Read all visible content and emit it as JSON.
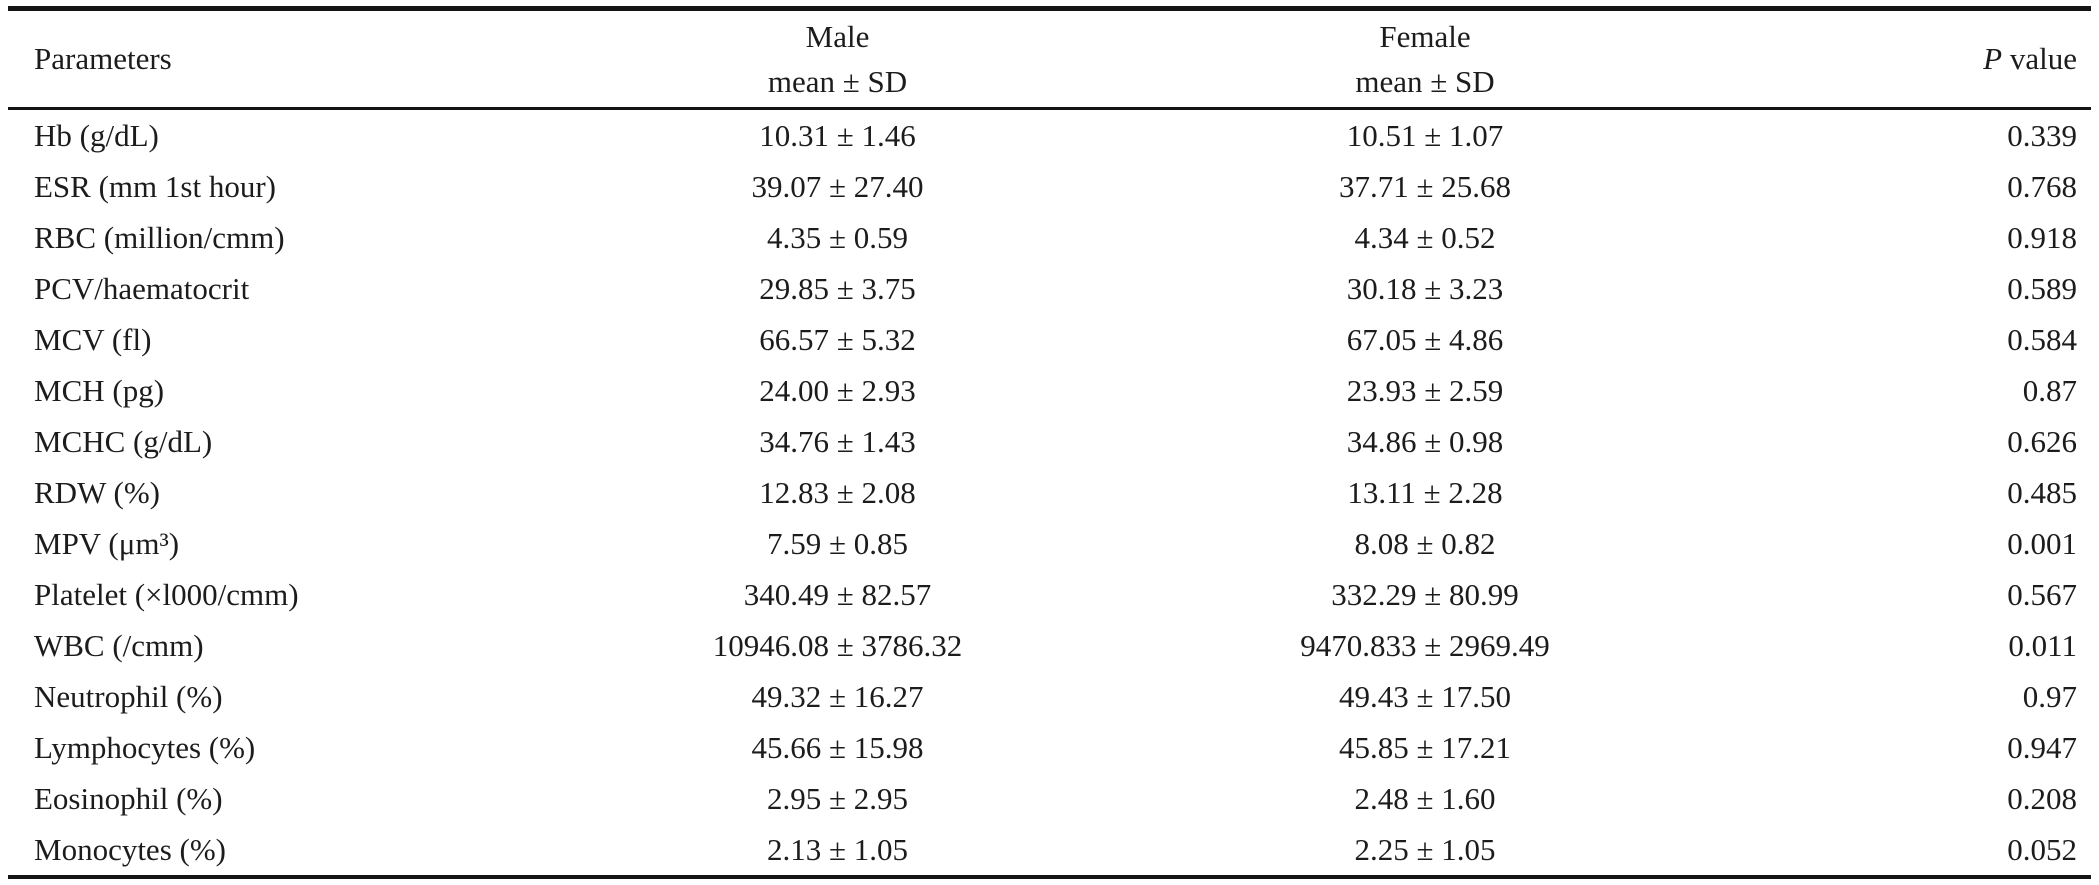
{
  "colors": {
    "background": "#ffffff",
    "text": "#1c1c1c",
    "rule": "#141414"
  },
  "table": {
    "header": {
      "parameters_label": "Parameters",
      "male_label": "Male",
      "male_sub": "mean ± SD",
      "female_label": "Female",
      "female_sub": "mean ± SD",
      "p_label_italic": "P",
      "p_label_rest": " value"
    },
    "rows": [
      {
        "parameter": "Hb (g/dL)",
        "male": "10.31 ± 1.46",
        "female": "10.51 ± 1.07",
        "p": "0.339"
      },
      {
        "parameter": "ESR (mm 1st hour)",
        "male": "39.07 ± 27.40",
        "female": "37.71 ± 25.68",
        "p": "0.768"
      },
      {
        "parameter": "RBC (million/cmm)",
        "male": "4.35 ± 0.59",
        "female": "4.34 ± 0.52",
        "p": "0.918"
      },
      {
        "parameter": "PCV/haematocrit",
        "male": "29.85 ± 3.75",
        "female": "30.18 ± 3.23",
        "p": "0.589"
      },
      {
        "parameter": "MCV (fl)",
        "male": "66.57 ± 5.32",
        "female": "67.05 ± 4.86",
        "p": "0.584"
      },
      {
        "parameter": "MCH (pg)",
        "male": "24.00 ± 2.93",
        "female": "23.93 ± 2.59",
        "p": "0.87"
      },
      {
        "parameter": "MCHC (g/dL)",
        "male": "34.76 ± 1.43",
        "female": "34.86 ± 0.98",
        "p": "0.626"
      },
      {
        "parameter": "RDW (%)",
        "male": "12.83 ± 2.08",
        "female": "13.11 ± 2.28",
        "p": "0.485"
      },
      {
        "parameter": "MPV (μm³)",
        "male": "7.59 ± 0.85",
        "female": "8.08 ± 0.82",
        "p": "0.001"
      },
      {
        "parameter": "Platelet (×l000/cmm)",
        "male": "340.49 ± 82.57",
        "female": "332.29 ± 80.99",
        "p": "0.567"
      },
      {
        "parameter": "WBC (/cmm)",
        "male": "10946.08 ± 3786.32",
        "female": "9470.833 ± 2969.49",
        "p": "0.011"
      },
      {
        "parameter": "Neutrophil (%)",
        "male": "49.32 ± 16.27",
        "female": "49.43 ± 17.50",
        "p": "0.97"
      },
      {
        "parameter": "Lymphocytes (%)",
        "male": "45.66 ± 15.98",
        "female": "45.85 ± 17.21",
        "p": "0.947"
      },
      {
        "parameter": "Eosinophil (%)",
        "male": "2.95 ± 2.95",
        "female": "2.48 ± 1.60",
        "p": "0.208"
      },
      {
        "parameter": "Monocytes (%)",
        "male": "2.13 ± 1.05",
        "female": "2.25 ± 1.05",
        "p": "0.052"
      }
    ]
  },
  "chart_data": {
    "type": "table",
    "columns": [
      "Parameters",
      "Male mean ± SD",
      "Female mean ± SD",
      "P value"
    ],
    "rows": [
      [
        "Hb (g/dL)",
        "10.31 ± 1.46",
        "10.51 ± 1.07",
        "0.339"
      ],
      [
        "ESR (mm 1st hour)",
        "39.07 ± 27.40",
        "37.71 ± 25.68",
        "0.768"
      ],
      [
        "RBC (million/cmm)",
        "4.35 ± 0.59",
        "4.34 ± 0.52",
        "0.918"
      ],
      [
        "PCV/haematocrit",
        "29.85 ± 3.75",
        "30.18 ± 3.23",
        "0.589"
      ],
      [
        "MCV (fl)",
        "66.57 ± 5.32",
        "67.05 ± 4.86",
        "0.584"
      ],
      [
        "MCH (pg)",
        "24.00 ± 2.93",
        "23.93 ± 2.59",
        "0.87"
      ],
      [
        "MCHC (g/dL)",
        "34.76 ± 1.43",
        "34.86 ± 0.98",
        "0.626"
      ],
      [
        "RDW (%)",
        "12.83 ± 2.08",
        "13.11 ± 2.28",
        "0.485"
      ],
      [
        "MPV (μm³)",
        "7.59 ± 0.85",
        "8.08 ± 0.82",
        "0.001"
      ],
      [
        "Platelet (×l000/cmm)",
        "340.49 ± 82.57",
        "332.29 ± 80.99",
        "0.567"
      ],
      [
        "WBC (/cmm)",
        "10946.08 ± 3786.32",
        "9470.833 ± 2969.49",
        "0.011"
      ],
      [
        "Neutrophil (%)",
        "49.32 ± 16.27",
        "49.43 ± 17.50",
        "0.97"
      ],
      [
        "Lymphocytes (%)",
        "45.66 ± 15.98",
        "45.85 ± 17.21",
        "0.947"
      ],
      [
        "Eosinophil (%)",
        "2.95 ± 2.95",
        "2.48 ± 1.60",
        "0.208"
      ],
      [
        "Monocytes (%)",
        "2.13 ± 1.05",
        "2.25 ± 1.05",
        "0.052"
      ]
    ]
  }
}
